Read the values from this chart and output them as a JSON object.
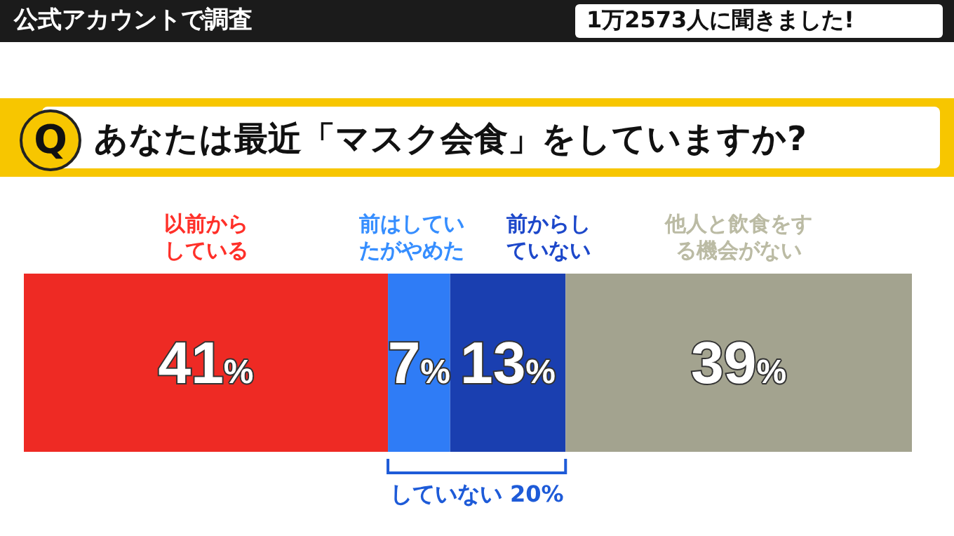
{
  "chart_data": {
    "type": "bar",
    "orientation": "horizontal",
    "stacked": true,
    "title": "あなたは最近「マスク会食」をしていますか?",
    "annotations": [
      "公式アカウントで調査",
      "1万2573人に聞きました!",
      "Q",
      "していない 20%"
    ],
    "categories": [
      null
    ],
    "xlim": [
      0,
      100
    ],
    "tick_labels": false,
    "legend": false,
    "data_labels": true,
    "series": [
      {
        "name": "以前からしている",
        "color": "#ee2a24",
        "values": [
          41
        ],
        "value_labels": [
          "41%"
        ]
      },
      {
        "name": "前はしていたがやめた",
        "color": "#2f7cf6",
        "values": [
          7
        ],
        "value_labels": [
          "7%"
        ]
      },
      {
        "name": "前からしていない",
        "color": "#1a3fb0",
        "values": [
          13
        ],
        "value_labels": [
          "13%"
        ]
      },
      {
        "name": "他人と飲食をする機会がない",
        "color": "#a3a38f",
        "values": [
          39
        ],
        "value_labels": [
          "39%"
        ]
      }
    ]
  }
}
